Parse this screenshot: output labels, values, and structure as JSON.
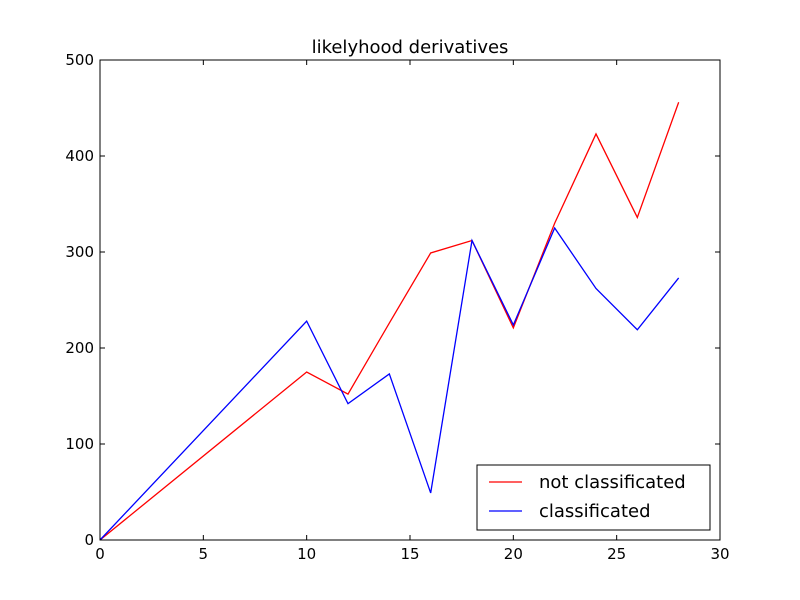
{
  "chart_data": {
    "type": "line",
    "title": "likelyhood derivatives",
    "xlabel": "",
    "ylabel": "",
    "xlim": [
      0,
      30
    ],
    "ylim": [
      0,
      500
    ],
    "xticks": [
      0,
      5,
      10,
      15,
      20,
      25,
      30
    ],
    "yticks": [
      0,
      100,
      200,
      300,
      400,
      500
    ],
    "grid": false,
    "legend_position": "lower-right",
    "series": [
      {
        "name": "not classificated",
        "color": "#ff0000",
        "x": [
          0,
          10,
          12,
          14,
          16,
          18,
          20,
          22,
          24,
          26,
          28
        ],
        "y": [
          0,
          175,
          152,
          226,
          299,
          312,
          221,
          330,
          423,
          336,
          456
        ]
      },
      {
        "name": "classificated",
        "color": "#0000ff",
        "x": [
          0,
          10,
          12,
          14,
          16,
          18,
          20,
          22,
          24,
          26,
          28
        ],
        "y": [
          0,
          228,
          142,
          173,
          49,
          312,
          224,
          325,
          262,
          219,
          273
        ]
      }
    ]
  }
}
